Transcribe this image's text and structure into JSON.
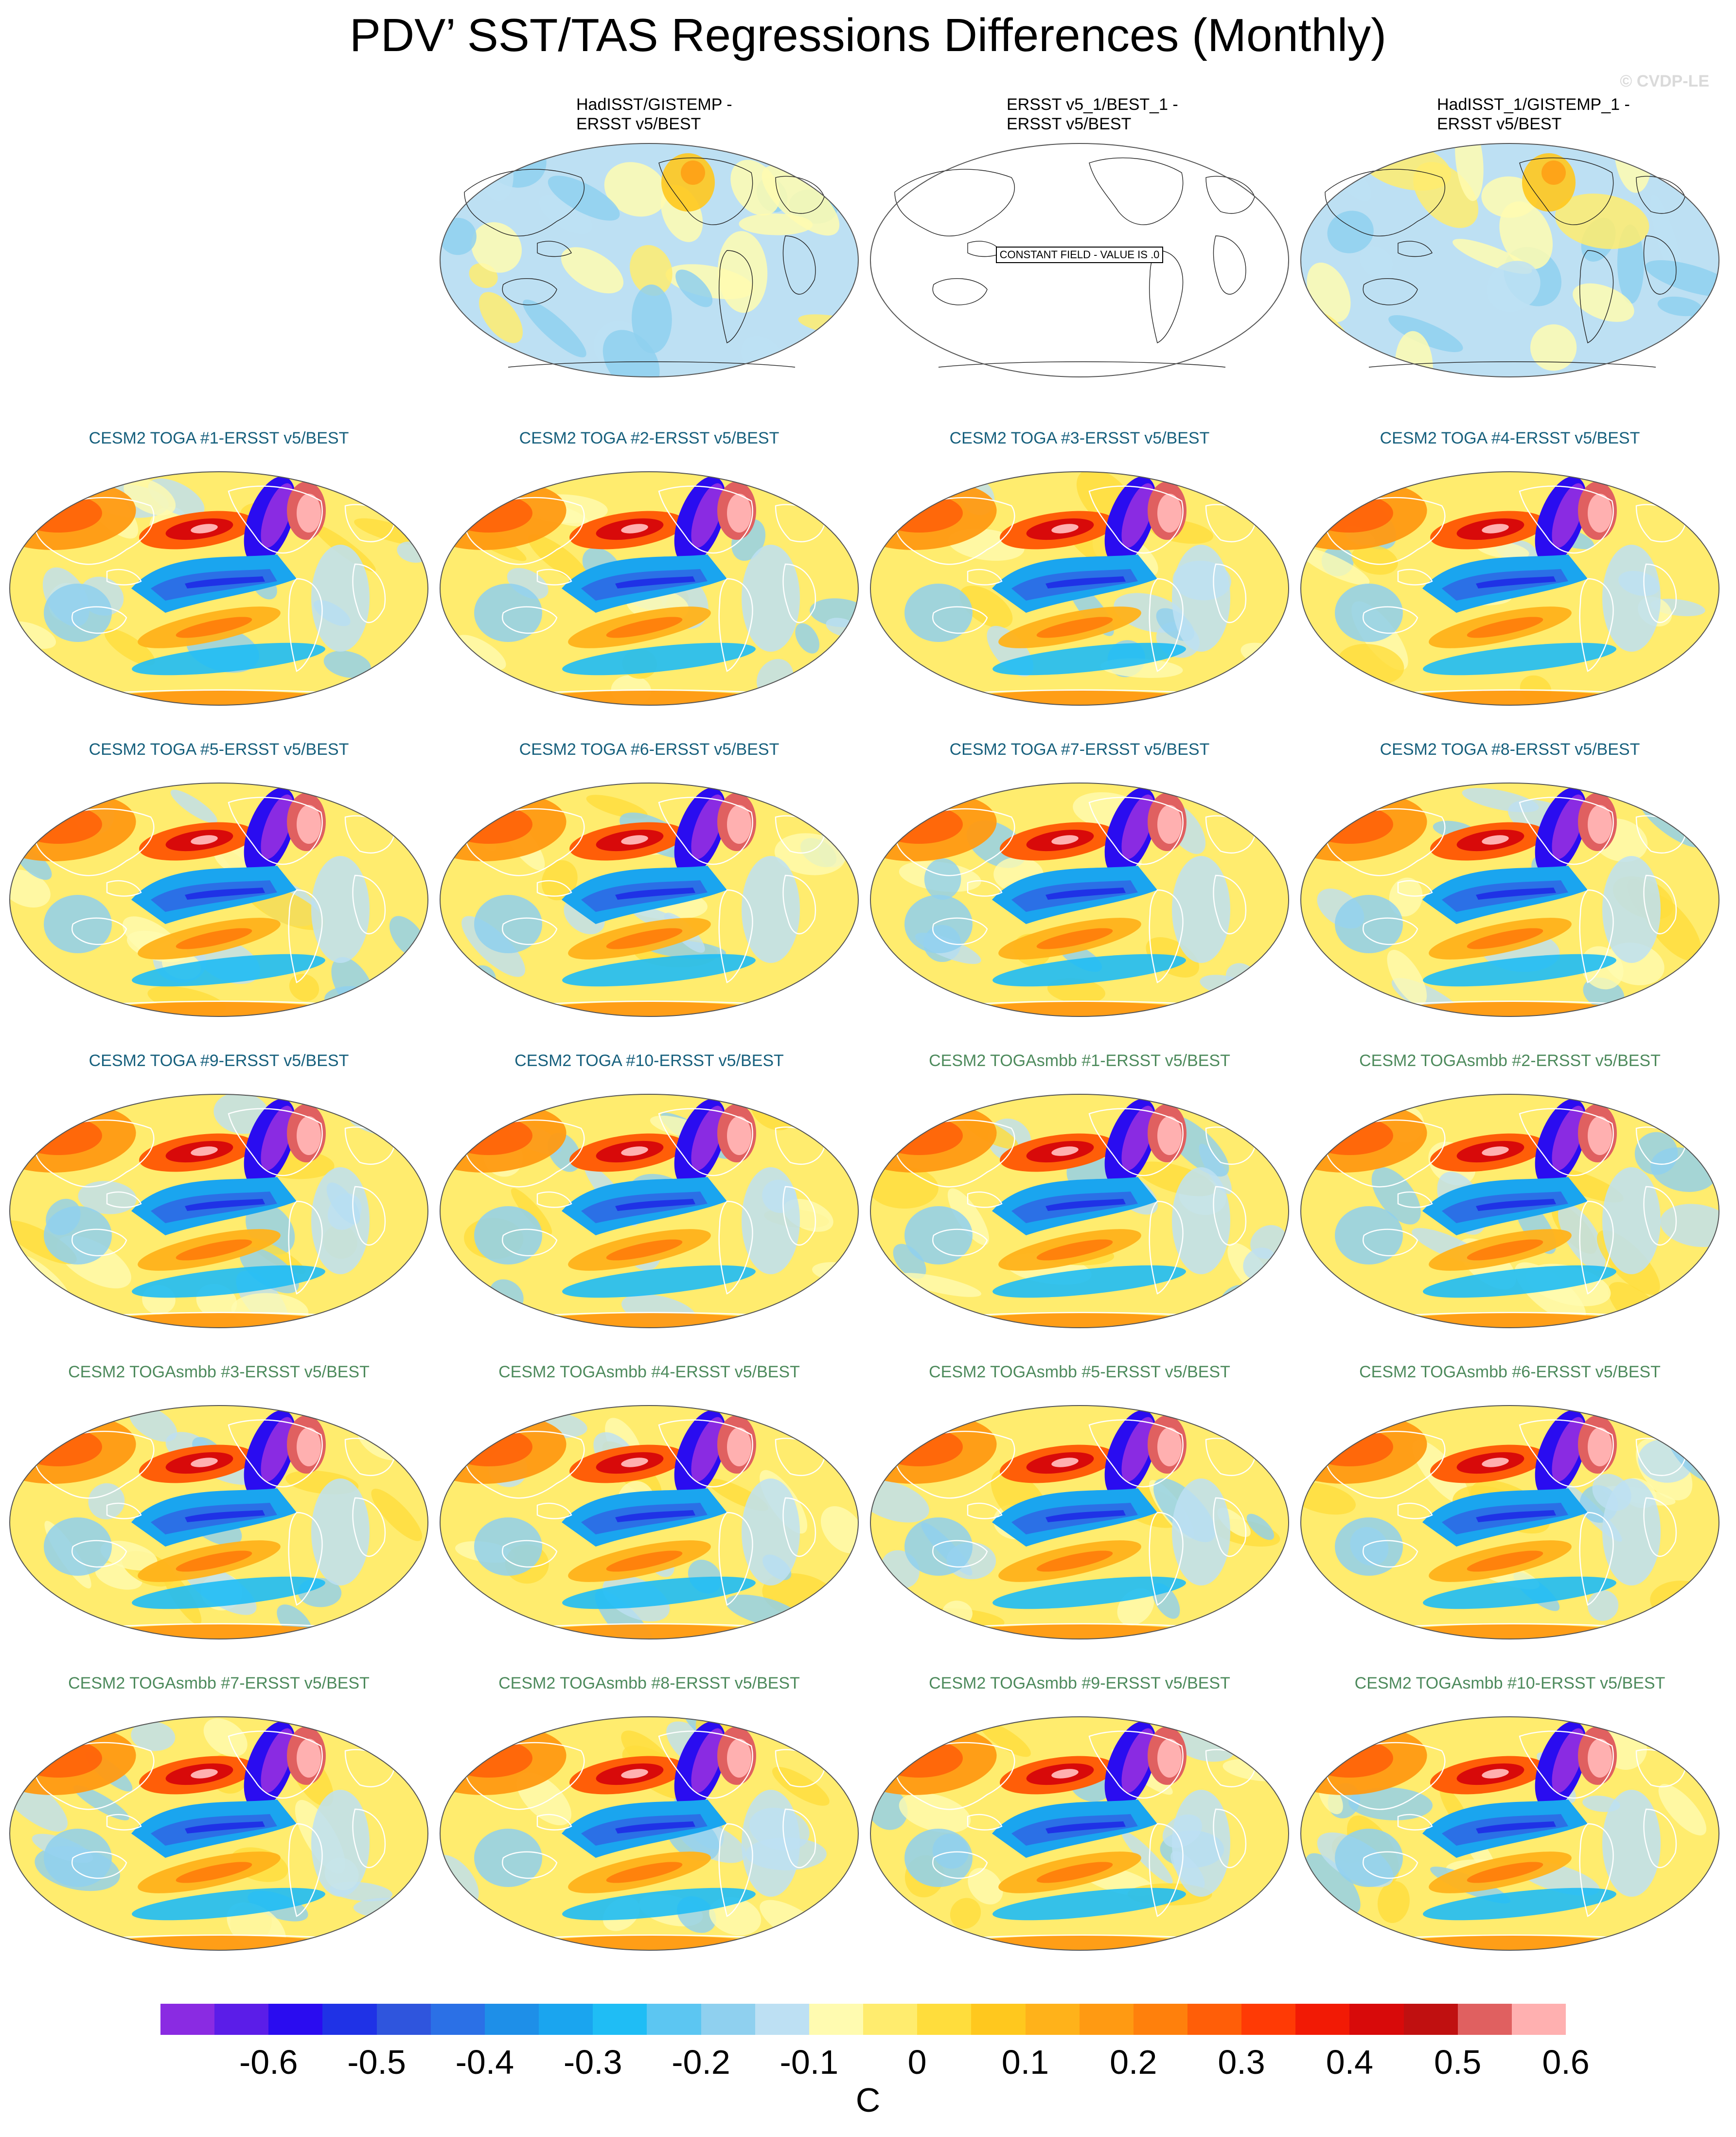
{
  "title": "PDV’ SST/TAS Regressions Differences (Monthly)",
  "watermark": "© CVDP-LE",
  "constant_field_label": "CONSTANT FIELD - VALUE IS .0",
  "panels": [
    {
      "title_line1": "HadISST/GISTEMP -",
      "title_line2": "ERSST v5/BEST",
      "kind": "obs",
      "col": 1,
      "row": 0
    },
    {
      "title_line1": "ERSST v5_1/BEST_1 -",
      "title_line2": "ERSST v5/BEST",
      "kind": "constant",
      "col": 2,
      "row": 0
    },
    {
      "title_line1": "HadISST_1/GISTEMP_1 -",
      "title_line2": "ERSST v5/BEST",
      "kind": "obs",
      "col": 3,
      "row": 0
    },
    {
      "title": "CESM2 TOGA #1-ERSST v5/BEST",
      "kind": "toga",
      "col": 0,
      "row": 1
    },
    {
      "title": "CESM2 TOGA #2-ERSST v5/BEST",
      "kind": "toga",
      "col": 1,
      "row": 1
    },
    {
      "title": "CESM2 TOGA #3-ERSST v5/BEST",
      "kind": "toga",
      "col": 2,
      "row": 1
    },
    {
      "title": "CESM2 TOGA #4-ERSST v5/BEST",
      "kind": "toga",
      "col": 3,
      "row": 1
    },
    {
      "title": "CESM2 TOGA #5-ERSST v5/BEST",
      "kind": "toga",
      "col": 0,
      "row": 2
    },
    {
      "title": "CESM2 TOGA #6-ERSST v5/BEST",
      "kind": "toga",
      "col": 1,
      "row": 2
    },
    {
      "title": "CESM2 TOGA #7-ERSST v5/BEST",
      "kind": "toga",
      "col": 2,
      "row": 2
    },
    {
      "title": "CESM2 TOGA #8-ERSST v5/BEST",
      "kind": "toga",
      "col": 3,
      "row": 2
    },
    {
      "title": "CESM2 TOGA #9-ERSST v5/BEST",
      "kind": "toga",
      "col": 0,
      "row": 3
    },
    {
      "title": "CESM2 TOGA #10-ERSST v5/BEST",
      "kind": "toga",
      "col": 1,
      "row": 3
    },
    {
      "title": "CESM2 TOGAsmbb #1-ERSST v5/BEST",
      "kind": "smbb",
      "col": 2,
      "row": 3
    },
    {
      "title": "CESM2 TOGAsmbb #2-ERSST v5/BEST",
      "kind": "smbb",
      "col": 3,
      "row": 3
    },
    {
      "title": "CESM2 TOGAsmbb #3-ERSST v5/BEST",
      "kind": "smbb",
      "col": 0,
      "row": 4
    },
    {
      "title": "CESM2 TOGAsmbb #4-ERSST v5/BEST",
      "kind": "smbb",
      "col": 1,
      "row": 4
    },
    {
      "title": "CESM2 TOGAsmbb #5-ERSST v5/BEST",
      "kind": "smbb",
      "col": 2,
      "row": 4
    },
    {
      "title": "CESM2 TOGAsmbb #6-ERSST v5/BEST",
      "kind": "smbb",
      "col": 3,
      "row": 4
    },
    {
      "title": "CESM2 TOGAsmbb #7-ERSST v5/BEST",
      "kind": "smbb",
      "col": 0,
      "row": 5
    },
    {
      "title": "CESM2 TOGAsmbb #8-ERSST v5/BEST",
      "kind": "smbb",
      "col": 1,
      "row": 5
    },
    {
      "title": "CESM2 TOGAsmbb #9-ERSST v5/BEST",
      "kind": "smbb",
      "col": 2,
      "row": 5
    },
    {
      "title": "CESM2 TOGAsmbb #10-ERSST v5/BEST",
      "kind": "smbb",
      "col": 3,
      "row": 5
    }
  ],
  "colorbar": {
    "units": "C",
    "colors": [
      "#8a2be2",
      "#5b1de8",
      "#2a0cf0",
      "#1f32e6",
      "#2f55dd",
      "#2b70e6",
      "#1e8fe8",
      "#1aa5ef",
      "#1fbdf5",
      "#5cc6f2",
      "#8fd0ef",
      "#bde0f3",
      "#fffbb0",
      "#ffec6e",
      "#ffdd3c",
      "#ffc81e",
      "#ffb21a",
      "#ff9a12",
      "#ff800c",
      "#ff5e08",
      "#ff3a05",
      "#f21a05",
      "#d80a0a",
      "#c01010",
      "#e06060",
      "#ffb0b0"
    ],
    "tick_labels": [
      "-0.6",
      "-0.5",
      "-0.4",
      "-0.3",
      "-0.2",
      "-0.1",
      "0",
      "0.1",
      "0.2",
      "0.3",
      "0.4",
      "0.5",
      "0.6"
    ]
  },
  "legend_colors": {
    "toga_title": "#17607d",
    "smbb_title": "#4d8a5c"
  }
}
